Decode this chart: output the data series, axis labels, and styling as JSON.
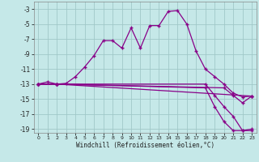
{
  "title": "",
  "xlabel": "Windchill (Refroidissement éolien,°C)",
  "bg_color": "#c5e8e8",
  "line_color": "#880088",
  "grid_color": "#a0c8c8",
  "xlim": [
    -0.5,
    23.5
  ],
  "ylim": [
    -19.5,
    -2.0
  ],
  "yticks": [
    -19,
    -17,
    -15,
    -13,
    -11,
    -9,
    -7,
    -5,
    -3
  ],
  "xticks": [
    0,
    1,
    2,
    3,
    4,
    5,
    6,
    7,
    8,
    9,
    10,
    11,
    12,
    13,
    14,
    15,
    16,
    17,
    18,
    19,
    20,
    21,
    22,
    23
  ],
  "curve1_x": [
    0,
    1,
    2,
    3,
    4,
    5,
    6,
    7,
    8,
    9,
    10,
    11,
    12,
    13,
    14,
    15,
    16,
    17,
    18,
    19,
    20,
    21,
    22,
    23
  ],
  "curve1_y": [
    -13,
    -12.7,
    -13,
    -12.9,
    -12,
    -10.7,
    -9.2,
    -7.2,
    -7.2,
    -8.2,
    -5.5,
    -8.2,
    -5.2,
    -5.2,
    -3.3,
    -3.2,
    -5.0,
    -8.6,
    -11.0,
    -12.0,
    -13.0,
    -14.2,
    -14.7,
    -14.6
  ],
  "curve2_x": [
    0,
    2,
    23
  ],
  "curve2_y": [
    -13,
    -13,
    -14.6
  ],
  "curve3_x": [
    0,
    2,
    20,
    21,
    22,
    23
  ],
  "curve3_y": [
    -13,
    -13,
    -13.5,
    -14.5,
    -15.5,
    -14.6
  ],
  "curve4_x": [
    0,
    2,
    18,
    19,
    20,
    21,
    22,
    23
  ],
  "curve4_y": [
    -13,
    -13,
    -13.0,
    -14.5,
    -16.0,
    -17.3,
    -19.2,
    -19.2
  ],
  "curve5_x": [
    0,
    2,
    18,
    19,
    20,
    21,
    22,
    23
  ],
  "curve5_y": [
    -13,
    -13,
    -13.5,
    -16.0,
    -18.0,
    -19.2,
    -19.2,
    -19.0
  ]
}
